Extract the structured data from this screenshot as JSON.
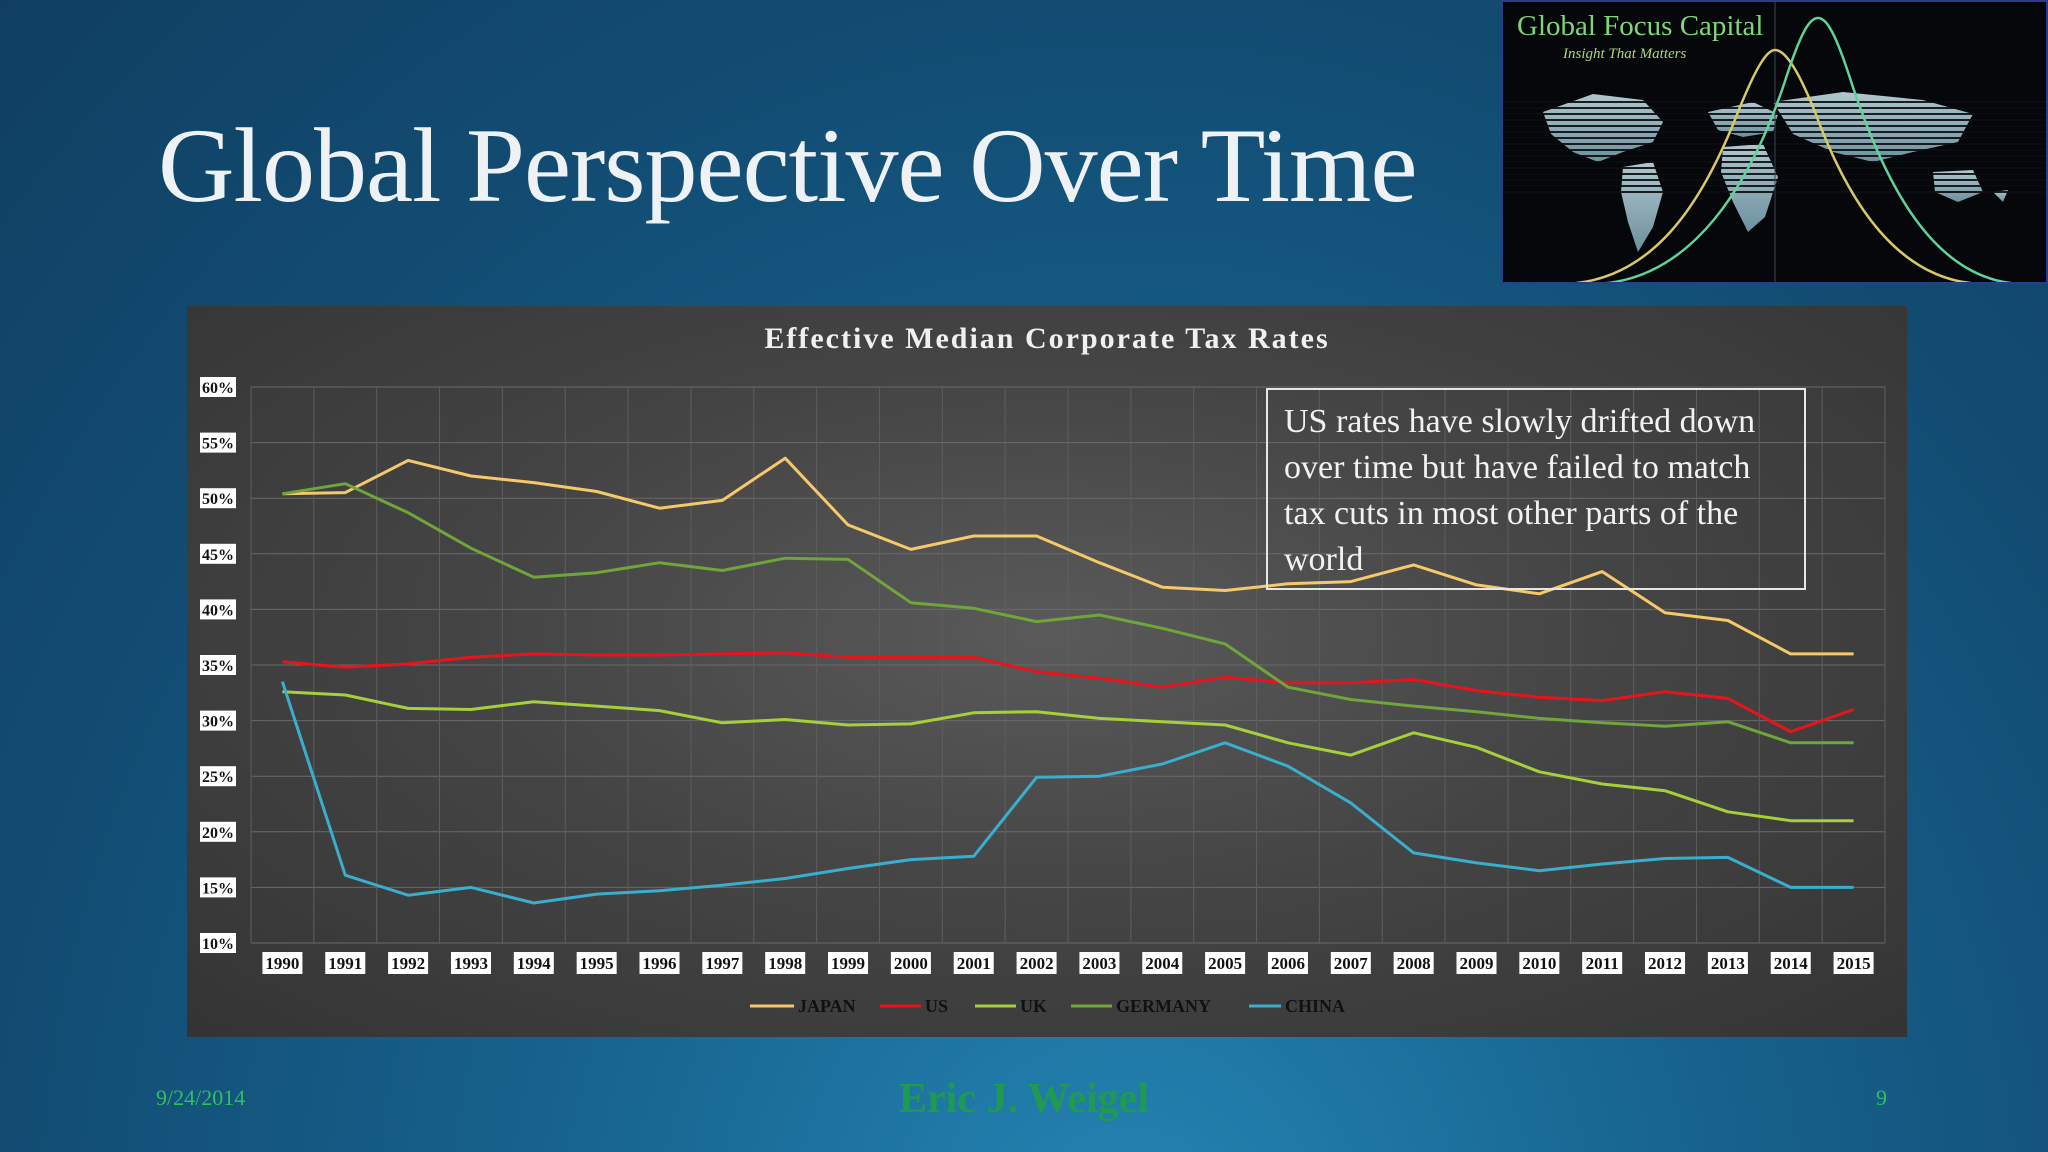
{
  "slide": {
    "title": "Global Perspective Over Time",
    "footer_date": "9/24/2014",
    "footer_author": "Eric J. Weigel",
    "page_number": "9"
  },
  "logo": {
    "name": "Global Focus Capital",
    "tagline": "Insight That Matters"
  },
  "annotation": {
    "text": "US rates have slowly drifted down over time but have failed to match tax cuts in most other parts of the world"
  },
  "colors": {
    "japan": "#f5c96a",
    "us": "#e8141c",
    "uk": "#a6cf3a",
    "germany": "#6fa53a",
    "china": "#3aaecd",
    "footer_green": "#2fbf63"
  },
  "chart_data": {
    "type": "line",
    "title": "Effective Median Corporate Tax Rates",
    "xlabel": "",
    "ylabel": "",
    "x": [
      "1990",
      "1991",
      "1992",
      "1993",
      "1994",
      "1995",
      "1996",
      "1997",
      "1998",
      "1999",
      "2000",
      "2001",
      "2002",
      "2003",
      "2004",
      "2005",
      "2006",
      "2007",
      "2008",
      "2009",
      "2010",
      "2011",
      "2012",
      "2013",
      "2014",
      "2015"
    ],
    "ylim": [
      10,
      60
    ],
    "yticks": [
      "10%",
      "15%",
      "20%",
      "25%",
      "30%",
      "35%",
      "40%",
      "45%",
      "50%",
      "55%",
      "60%"
    ],
    "grid": true,
    "legend_position": "bottom",
    "series": [
      {
        "name": "JAPAN",
        "color": "#f5c96a",
        "values": [
          50.4,
          50.5,
          53.4,
          52.0,
          51.4,
          50.6,
          49.1,
          49.8,
          53.6,
          47.6,
          45.4,
          46.6,
          46.6,
          44.2,
          42.0,
          41.7,
          42.3,
          42.5,
          44.0,
          42.2,
          41.4,
          43.4,
          39.7,
          39.0,
          36.0,
          36.0
        ]
      },
      {
        "name": "US",
        "color": "#e8141c",
        "values": [
          35.3,
          34.8,
          35.1,
          35.7,
          36.0,
          35.9,
          35.9,
          36.0,
          36.1,
          35.7,
          35.7,
          35.7,
          34.4,
          33.8,
          33.0,
          33.9,
          33.4,
          33.4,
          33.7,
          32.7,
          32.1,
          31.8,
          32.6,
          32.0,
          29.0,
          31.0
        ]
      },
      {
        "name": "UK",
        "color": "#a6cf3a",
        "values": [
          32.6,
          32.3,
          31.1,
          31.0,
          31.7,
          31.3,
          30.9,
          29.8,
          30.1,
          29.6,
          29.7,
          30.7,
          30.8,
          30.2,
          29.9,
          29.6,
          28.0,
          26.9,
          28.9,
          27.6,
          25.4,
          24.3,
          23.7,
          21.8,
          21.0,
          21.0
        ]
      },
      {
        "name": "GERMANY",
        "color": "#6fa53a",
        "values": [
          50.4,
          51.3,
          48.7,
          45.5,
          42.9,
          43.3,
          44.2,
          43.5,
          44.6,
          44.5,
          40.6,
          40.1,
          38.9,
          39.5,
          38.3,
          36.9,
          33.0,
          31.9,
          31.3,
          30.8,
          30.2,
          29.8,
          29.5,
          29.9,
          28.0,
          28.0
        ]
      },
      {
        "name": "CHINA",
        "color": "#3aaecd",
        "values": [
          33.5,
          16.1,
          14.3,
          15.0,
          13.6,
          14.4,
          14.7,
          15.2,
          15.8,
          16.7,
          17.5,
          17.8,
          24.9,
          25.0,
          26.1,
          28.0,
          25.9,
          22.6,
          18.1,
          17.2,
          16.5,
          17.1,
          17.6,
          17.7,
          15.0,
          15.0
        ]
      }
    ]
  }
}
